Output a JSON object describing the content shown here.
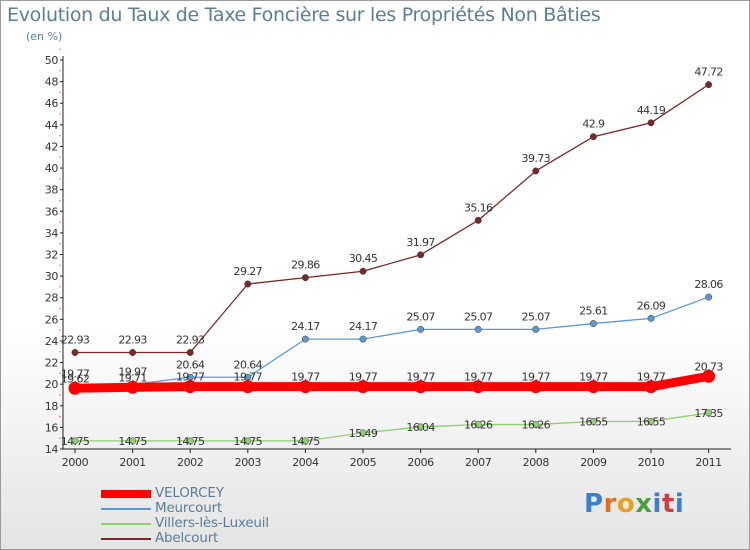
{
  "chart_data": {
    "type": "line",
    "title": "Evolution du Taux de Taxe Foncière sur les Propriétés Non Bâties",
    "subtitle": "(en %)",
    "categories": [
      "2000",
      "2001",
      "2002",
      "2003",
      "2004",
      "2005",
      "2006",
      "2007",
      "2008",
      "2009",
      "2010",
      "2011"
    ],
    "ylim": [
      14,
      50
    ],
    "yticks": [
      14,
      16,
      18,
      20,
      22,
      24,
      26,
      28,
      30,
      32,
      34,
      36,
      38,
      40,
      42,
      44,
      46,
      48,
      50
    ],
    "grid": false,
    "legend_position": "bottom-left",
    "series": [
      {
        "name": "VELORCEY",
        "color": "#ff0000",
        "values": [
          19.62,
          19.71,
          19.77,
          19.77,
          19.77,
          19.77,
          19.77,
          19.77,
          19.77,
          19.77,
          19.77,
          20.73
        ],
        "labels": [
          "19.62",
          "19.71",
          "19.77",
          "19.77",
          "19.77",
          "19.77",
          "19.77",
          "19.77",
          "19.77",
          "19.77",
          "19.77",
          "20.73"
        ]
      },
      {
        "name": "Meurcourt",
        "color": "#5b9bd5",
        "values": [
          19.77,
          19.97,
          20.64,
          20.64,
          24.17,
          24.17,
          25.07,
          25.07,
          25.07,
          25.61,
          26.09,
          28.06
        ],
        "labels": [
          "19.77",
          "19.97",
          "20.64",
          "20.64",
          "24.17",
          "24.17",
          "25.07",
          "25.07",
          "25.07",
          "25.61",
          "26.09",
          "28.06"
        ]
      },
      {
        "name": "Villers-lès-Luxeuil",
        "color": "#90d070",
        "values": [
          14.75,
          14.75,
          14.75,
          14.75,
          14.75,
          15.49,
          16.04,
          16.26,
          16.26,
          16.55,
          16.55,
          17.35
        ],
        "labels": [
          "14.75",
          "14.75",
          "14.75",
          "14.75",
          "14.75",
          "15.49",
          "16.04",
          "16.26",
          "16.26",
          "16.55",
          "16.55",
          "17.35"
        ]
      },
      {
        "name": "Abelcourt",
        "color": "#7a2828",
        "values": [
          22.93,
          22.93,
          22.93,
          29.27,
          29.86,
          30.45,
          31.97,
          35.16,
          39.73,
          42.9,
          44.19,
          47.72
        ],
        "labels": [
          "22.93",
          "22.93",
          "22.93",
          "29.27",
          "29.86",
          "30.45",
          "31.97",
          "35.16",
          "39.73",
          "42.9",
          "44.19",
          "47.72"
        ]
      }
    ]
  },
  "logo": {
    "text": "Proxiti"
  }
}
